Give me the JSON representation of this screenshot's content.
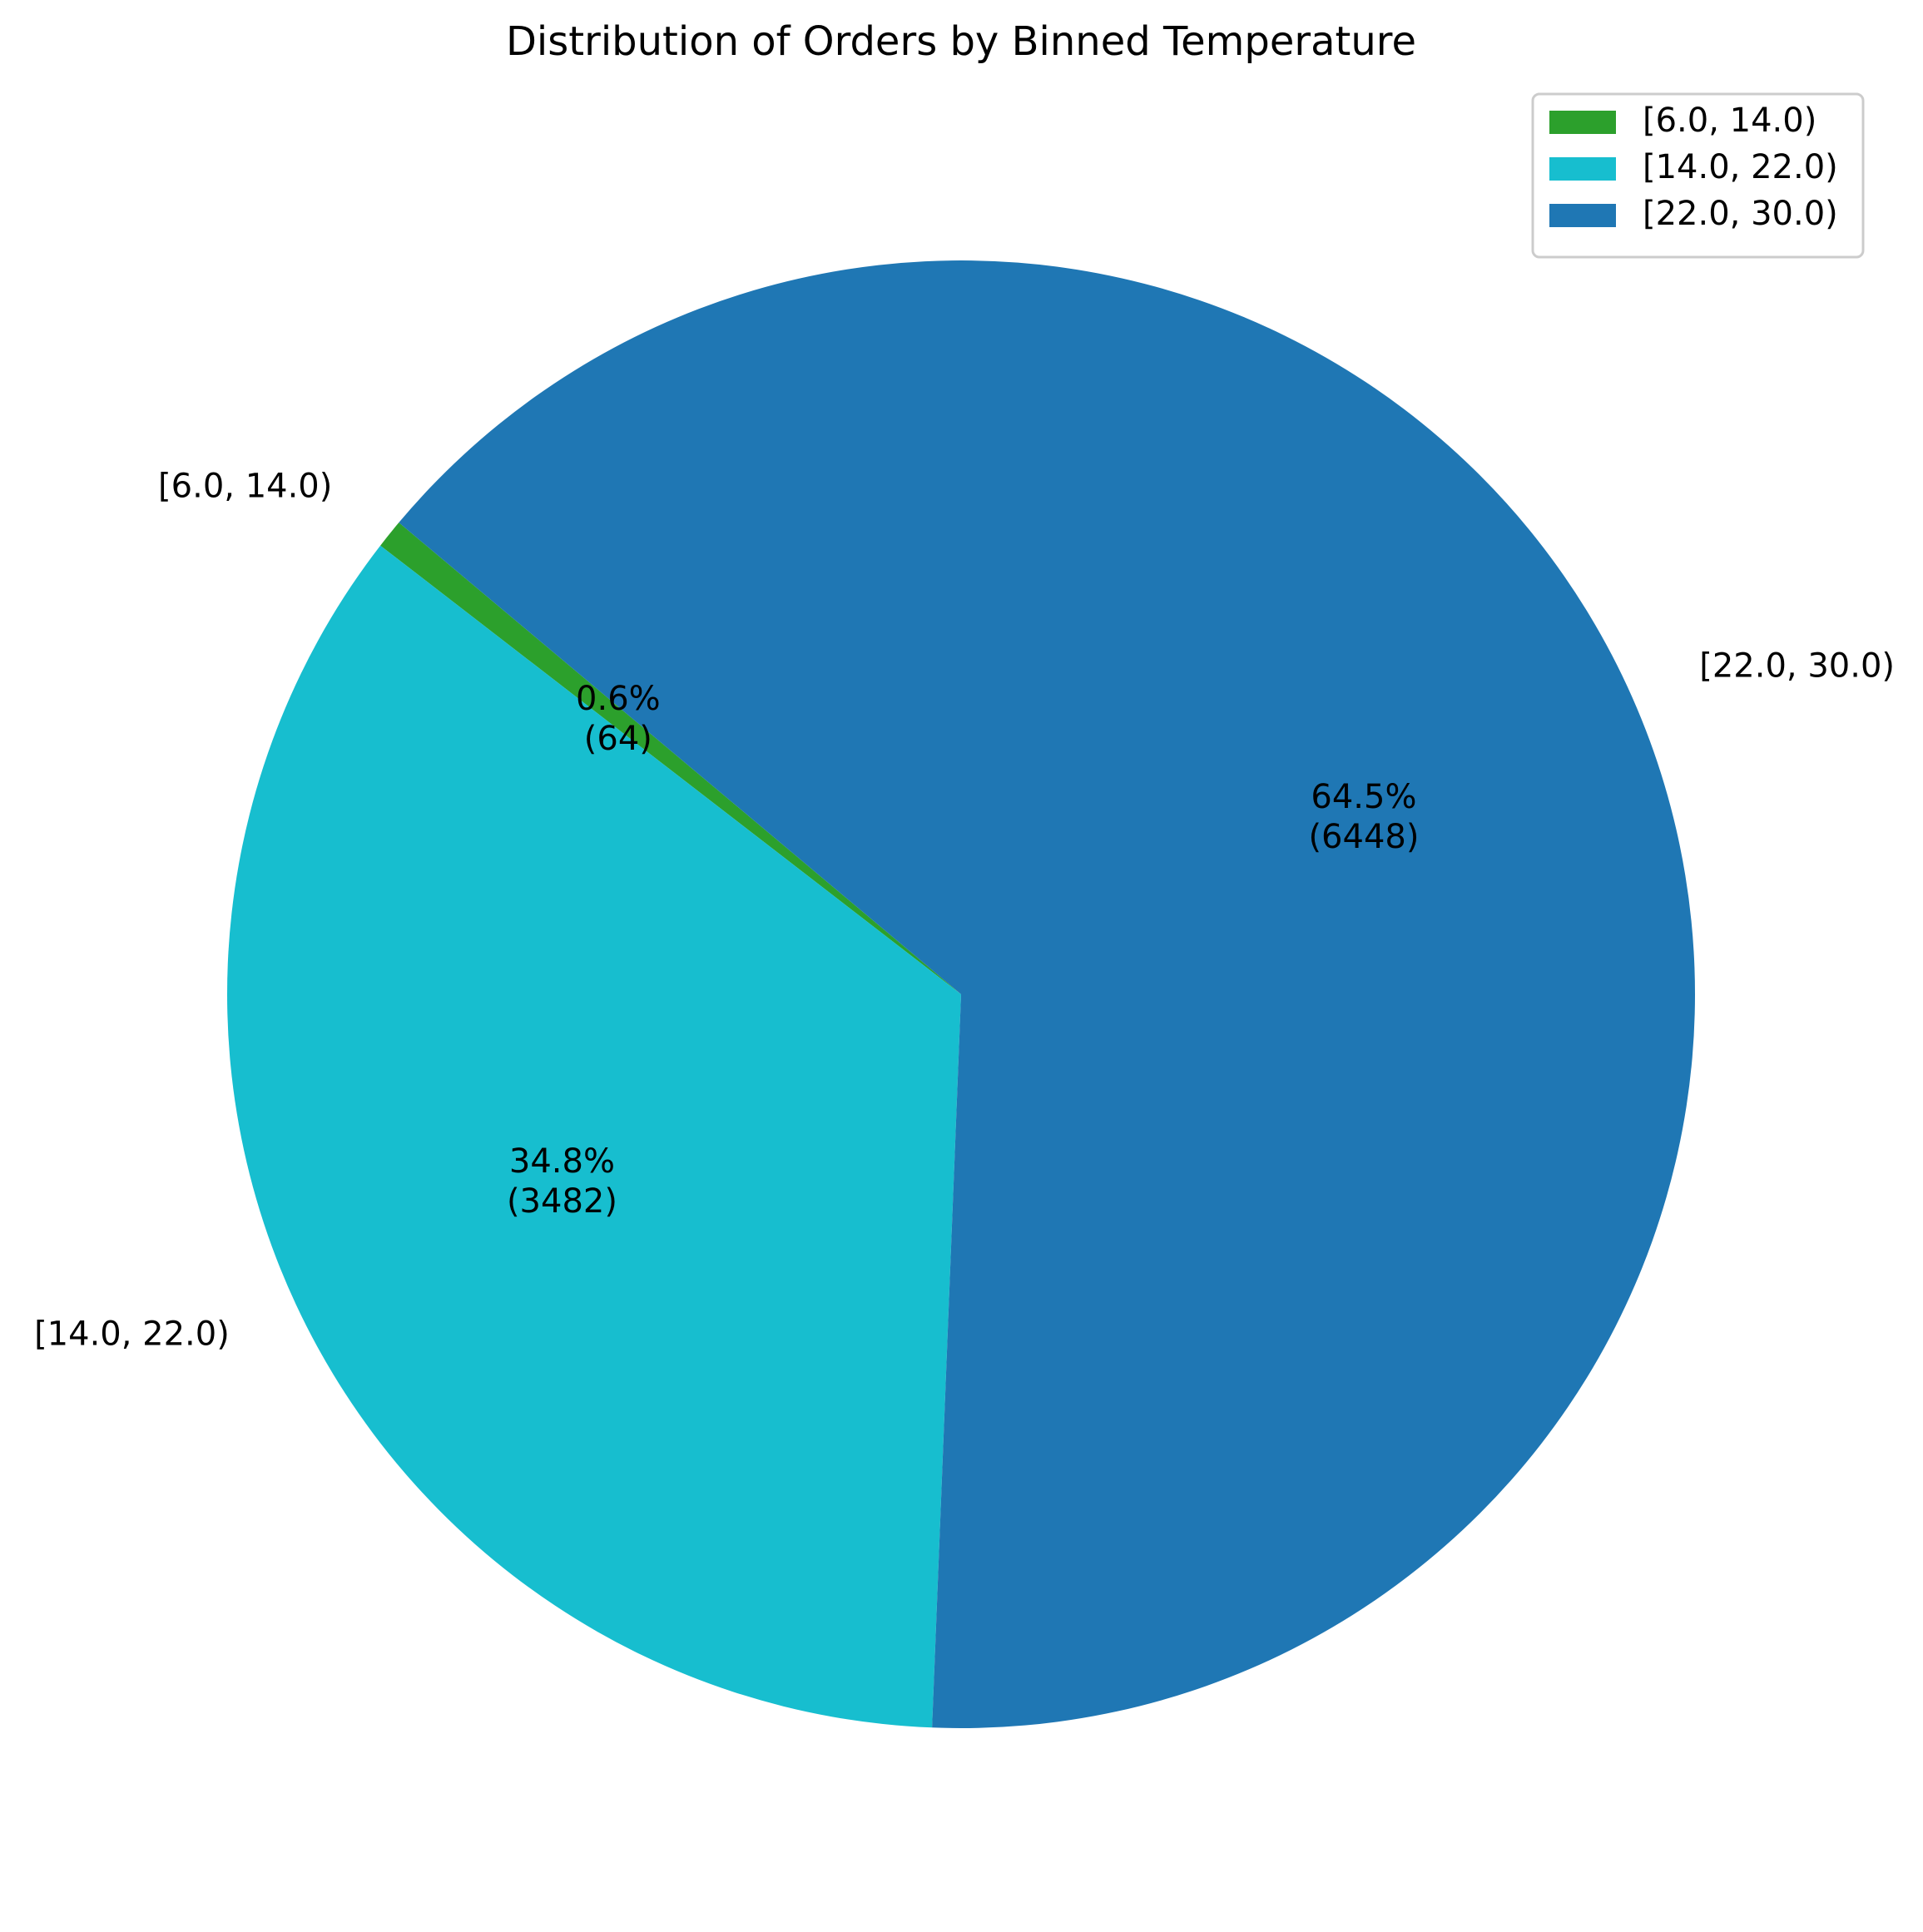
{
  "chart_data": {
    "type": "pie",
    "title": "Distribution of Orders by Binned Temperature",
    "categories": [
      "[6.0, 14.0)",
      "[14.0, 22.0)",
      "[22.0, 30.0)"
    ],
    "values": [
      64,
      3482,
      6448
    ],
    "percent_labels": [
      "0.6%",
      "34.8%",
      "64.5%"
    ],
    "count_labels": [
      "(64)",
      "(3482)",
      "(6448)"
    ],
    "colors": [
      "#2ca02c",
      "#17becf",
      "#1f77b4"
    ],
    "start_angle_deg": 140,
    "direction": "counterclockwise",
    "legend": {
      "placement": "upper-right",
      "entries": [
        "[6.0, 14.0)",
        "[14.0, 22.0)",
        "[22.0, 30.0)"
      ]
    }
  }
}
